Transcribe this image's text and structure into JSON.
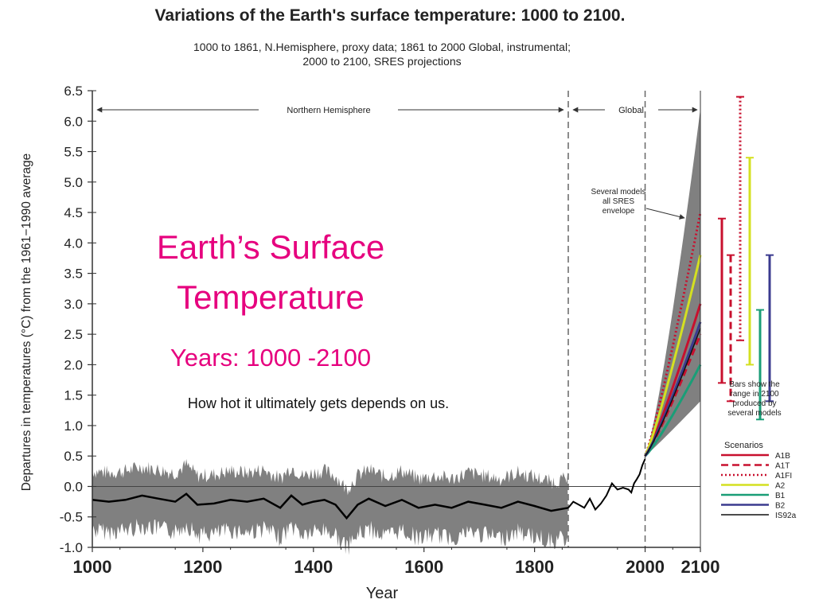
{
  "title": "Variations of the Earth's surface temperature: 1000 to 2100.",
  "subtitle_line1": "1000 to 1861, N.Hemisphere, proxy data; 1861 to 2000 Global, instrumental;",
  "subtitle_line2": "2000 to 2100, SRES projections",
  "overlay": {
    "line1": "Earth’s Surface",
    "line2": "Temperature",
    "years": "Years: 1000 -2100",
    "note": "How hot it ultimately gets depends on us."
  },
  "chart_data": {
    "type": "line",
    "xlabel": "Year",
    "ylabel": "Departures in temperatures (°C) from the 1961−1990 average",
    "xlim": [
      1000,
      2100
    ],
    "ylim": [
      -1.0,
      6.5
    ],
    "x_ticks": [
      1000,
      1200,
      1400,
      1600,
      1800,
      2000,
      2100
    ],
    "y_ticks": [
      "6.5",
      "6.0",
      "5.5",
      "5.0",
      "4.5",
      "4.0",
      "3.5",
      "3.0",
      "2.5",
      "2.0",
      "1.5",
      "1.0",
      "0.5",
      "0.0",
      "-0.5",
      "-1.0"
    ],
    "y_tick_values": [
      6.5,
      6.0,
      5.5,
      5.0,
      4.5,
      4.0,
      3.5,
      3.0,
      2.5,
      2.0,
      1.5,
      1.0,
      0.5,
      0.0,
      -0.5,
      -1.0
    ],
    "region_labels": {
      "nh": "Northern Hemisphere",
      "global": "Global"
    },
    "region_dividers": [
      1861,
      2000
    ],
    "envelope_label": [
      "Several models",
      "all SRES",
      "envelope"
    ],
    "bars_label": [
      "Bars show the",
      "range in 2100",
      "produced by",
      "several models"
    ],
    "legend_title": "Scenarios",
    "colors": {
      "band": "#808080",
      "smooth": "#000000",
      "axis": "#333333"
    },
    "smoothed_history": {
      "x": [
        1000,
        1030,
        1060,
        1090,
        1120,
        1150,
        1170,
        1190,
        1220,
        1250,
        1280,
        1310,
        1340,
        1360,
        1380,
        1400,
        1420,
        1440,
        1460,
        1480,
        1500,
        1530,
        1560,
        1590,
        1620,
        1650,
        1680,
        1710,
        1740,
        1770,
        1800,
        1830,
        1861
      ],
      "y": [
        -0.22,
        -0.25,
        -0.22,
        -0.15,
        -0.2,
        -0.25,
        -0.12,
        -0.3,
        -0.28,
        -0.22,
        -0.25,
        -0.2,
        -0.35,
        -0.15,
        -0.3,
        -0.25,
        -0.22,
        -0.3,
        -0.52,
        -0.3,
        -0.2,
        -0.32,
        -0.22,
        -0.35,
        -0.3,
        -0.35,
        -0.25,
        -0.3,
        -0.35,
        -0.25,
        -0.32,
        -0.4,
        -0.35
      ]
    },
    "instrumental_1861_2000": {
      "x": [
        1861,
        1870,
        1880,
        1890,
        1900,
        1910,
        1920,
        1930,
        1940,
        1945,
        1950,
        1960,
        1970,
        1975,
        1980,
        1985,
        1990,
        1995,
        2000
      ],
      "y": [
        -0.35,
        -0.25,
        -0.3,
        -0.35,
        -0.2,
        -0.38,
        -0.28,
        -0.15,
        0.05,
        0.0,
        -0.05,
        -0.02,
        -0.05,
        -0.1,
        0.05,
        0.12,
        0.2,
        0.35,
        0.45
      ]
    },
    "envelope_2100": {
      "min": 1.4,
      "max": 6.2
    },
    "projection_start": {
      "x": 2000,
      "y": 0.5
    },
    "series": [
      {
        "name": "A1B",
        "color": "#c8102e",
        "dash": "solid",
        "end_2100": 3.0,
        "bar_2100": [
          1.7,
          4.4
        ]
      },
      {
        "name": "A1T",
        "color": "#c8102e",
        "dash": "dashed",
        "end_2100": 2.5,
        "bar_2100": [
          1.4,
          3.8
        ]
      },
      {
        "name": "A1FI",
        "color": "#c8102e",
        "dash": "dotted",
        "end_2100": 4.5,
        "bar_2100": [
          2.4,
          6.4
        ]
      },
      {
        "name": "A2",
        "color": "#d4e021",
        "dash": "solid",
        "end_2100": 3.8,
        "bar_2100": [
          2.0,
          5.4
        ]
      },
      {
        "name": "B1",
        "color": "#1a9e77",
        "dash": "solid",
        "end_2100": 2.0,
        "bar_2100": [
          1.1,
          2.9
        ]
      },
      {
        "name": "B2",
        "color": "#3b3b8f",
        "dash": "solid",
        "end_2100": 2.7,
        "bar_2100": [
          1.4,
          3.8
        ]
      },
      {
        "name": "IS92a",
        "color": "#111111",
        "dash": "solid",
        "end_2100": 2.6
      }
    ]
  }
}
